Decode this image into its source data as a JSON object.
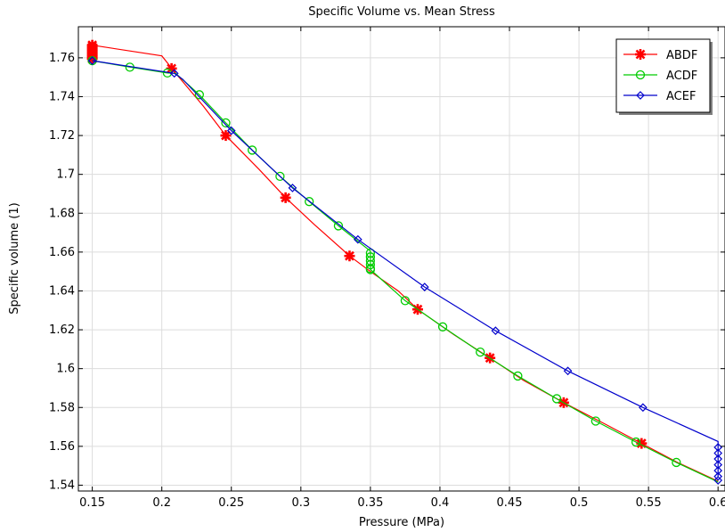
{
  "chart_data": {
    "type": "line",
    "title": "Specific Volume vs. Mean Stress",
    "xlabel": "Pressure (MPa)",
    "ylabel": "Specific volume (1)",
    "xlim": [
      0.14,
      0.605
    ],
    "ylim": [
      1.537,
      1.776
    ],
    "xticks": [
      "0.15",
      "0.2",
      "0.25",
      "0.3",
      "0.35",
      "0.4",
      "0.45",
      "0.5",
      "0.55",
      "0.6"
    ],
    "yticks": [
      "1.54",
      "1.56",
      "1.58",
      "1.6",
      "1.62",
      "1.64",
      "1.66",
      "1.68",
      "1.7",
      "1.72",
      "1.74",
      "1.76"
    ],
    "grid": true,
    "legend_position": "top-right",
    "series": [
      {
        "name": "ABDF",
        "color": "#ff0000",
        "marker": "star",
        "x": [
          0.15,
          0.15,
          0.2,
          0.21,
          0.23,
          0.246,
          0.27,
          0.289,
          0.31,
          0.335,
          0.35,
          0.37,
          0.384,
          0.41,
          0.436,
          0.46,
          0.489,
          0.52,
          0.545,
          0.57,
          0.6
        ],
        "y": [
          1.766,
          1.7665,
          1.761,
          1.752,
          1.735,
          1.72,
          1.7025,
          1.688,
          1.674,
          1.658,
          1.65,
          1.64,
          1.6305,
          1.6175,
          1.6055,
          1.594,
          1.5825,
          1.571,
          1.5615,
          1.552,
          1.542
        ],
        "marker_x": [
          0.15,
          0.15,
          0.15,
          0.15,
          0.15,
          0.15,
          0.15,
          0.15,
          0.207,
          0.246,
          0.289,
          0.335,
          0.384,
          0.436,
          0.489,
          0.545
        ],
        "marker_y": [
          1.7665,
          1.7655,
          1.7645,
          1.7635,
          1.7625,
          1.7615,
          1.7605,
          1.7595,
          1.7545,
          1.72,
          1.688,
          1.658,
          1.6305,
          1.6055,
          1.5825,
          1.5615
        ]
      },
      {
        "name": "ACDF",
        "color": "#00cc00",
        "marker": "circle",
        "x": [
          0.15,
          0.177,
          0.204,
          0.21,
          0.227,
          0.246,
          0.265,
          0.285,
          0.306,
          0.327,
          0.35,
          0.35,
          0.375,
          0.402,
          0.429,
          0.456,
          0.484,
          0.512,
          0.541,
          0.57,
          0.6
        ],
        "y": [
          1.7585,
          1.7552,
          1.7522,
          1.752,
          1.741,
          1.7265,
          1.7125,
          1.699,
          1.686,
          1.6735,
          1.6605,
          1.651,
          1.635,
          1.6215,
          1.6085,
          1.5962,
          1.5845,
          1.573,
          1.5622,
          1.5517,
          1.5417
        ],
        "marker_x": [
          0.15,
          0.177,
          0.204,
          0.227,
          0.246,
          0.265,
          0.285,
          0.306,
          0.327,
          0.35,
          0.35,
          0.35,
          0.35,
          0.35,
          0.35,
          0.375,
          0.402,
          0.429,
          0.456,
          0.484,
          0.512,
          0.541,
          0.57
        ],
        "marker_y": [
          1.7585,
          1.7552,
          1.7522,
          1.741,
          1.7265,
          1.7125,
          1.699,
          1.686,
          1.6735,
          1.6595,
          1.6575,
          1.6555,
          1.6535,
          1.6515,
          1.651,
          1.635,
          1.6215,
          1.6085,
          1.5962,
          1.5845,
          1.573,
          1.5622,
          1.5517
        ]
      },
      {
        "name": "ACEF",
        "color": "#0000cc",
        "marker": "diamond",
        "x": [
          0.15,
          0.209,
          0.215,
          0.25,
          0.294,
          0.341,
          0.389,
          0.44,
          0.492,
          0.546,
          0.6,
          0.6
        ],
        "y": [
          1.7585,
          1.752,
          1.749,
          1.7225,
          1.693,
          1.6665,
          1.642,
          1.6195,
          1.5988,
          1.58,
          1.5625,
          1.5445
        ],
        "marker_x": [
          0.15,
          0.209,
          0.25,
          0.294,
          0.341,
          0.389,
          0.44,
          0.492,
          0.546,
          0.6,
          0.6,
          0.6,
          0.6,
          0.6,
          0.6,
          0.6
        ],
        "marker_y": [
          1.7585,
          1.752,
          1.7225,
          1.693,
          1.6665,
          1.642,
          1.6195,
          1.5988,
          1.58,
          1.5595,
          1.5565,
          1.5535,
          1.5505,
          1.5475,
          1.5445,
          1.5425
        ]
      }
    ]
  }
}
